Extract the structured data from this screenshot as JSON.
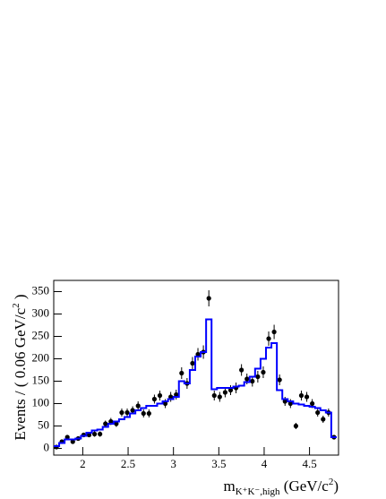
{
  "chart_data": {
    "type": "scatter",
    "y_label": [
      "Events / ( 0.06 GeV/c",
      "2",
      " )"
    ],
    "x_label": [
      "m",
      "K⁺K⁻,high",
      " (GeV/c",
      "2",
      ")"
    ],
    "xlim": [
      1.68,
      4.82
    ],
    "ylim": [
      -15,
      375
    ],
    "xticks": [
      2,
      2.5,
      3,
      3.5,
      4,
      4.5
    ],
    "yticks": [
      0,
      50,
      100,
      150,
      200,
      250,
      300,
      350
    ],
    "x": [
      1.71,
      1.77,
      1.83,
      1.89,
      1.95,
      2.01,
      2.07,
      2.13,
      2.19,
      2.25,
      2.31,
      2.37,
      2.43,
      2.49,
      2.55,
      2.61,
      2.67,
      2.73,
      2.79,
      2.85,
      2.91,
      2.97,
      3.03,
      3.09,
      3.15,
      3.21,
      3.27,
      3.33,
      3.39,
      3.45,
      3.51,
      3.57,
      3.63,
      3.69,
      3.75,
      3.81,
      3.87,
      3.93,
      3.99,
      4.05,
      4.11,
      4.17,
      4.23,
      4.29,
      4.35,
      4.41,
      4.47,
      4.53,
      4.59,
      4.65,
      4.71,
      4.77
    ],
    "series": [
      {
        "kind": "points",
        "color": "#000000",
        "values": [
          3,
          15,
          25,
          15,
          22,
          30,
          30,
          32,
          32,
          55,
          60,
          55,
          80,
          80,
          85,
          95,
          78,
          78,
          110,
          118,
          100,
          115,
          120,
          168,
          145,
          190,
          210,
          215,
          335,
          118,
          115,
          125,
          130,
          135,
          175,
          155,
          150,
          160,
          170,
          245,
          260,
          153,
          105,
          100,
          50,
          118,
          115,
          100,
          80,
          65,
          80,
          25
        ],
        "errors": [
          2,
          4,
          5,
          4,
          5,
          5,
          5,
          6,
          6,
          7,
          8,
          7,
          9,
          9,
          9,
          10,
          9,
          9,
          10,
          11,
          10,
          11,
          11,
          13,
          12,
          14,
          14,
          15,
          18,
          11,
          11,
          11,
          11,
          12,
          13,
          12,
          12,
          13,
          13,
          16,
          16,
          12,
          10,
          10,
          7,
          11,
          11,
          10,
          9,
          8,
          9,
          5
        ]
      },
      {
        "kind": "step",
        "color": "#0000ff",
        "values": [
          5,
          12,
          20,
          20,
          22,
          28,
          35,
          40,
          42,
          48,
          55,
          60,
          65,
          70,
          78,
          85,
          90,
          95,
          95,
          100,
          105,
          110,
          115,
          150,
          145,
          175,
          205,
          215,
          288,
          132,
          135,
          135,
          135,
          138,
          140,
          148,
          160,
          178,
          200,
          225,
          235,
          130,
          110,
          105,
          100,
          98,
          95,
          93,
          90,
          85,
          80,
          25
        ]
      }
    ]
  }
}
